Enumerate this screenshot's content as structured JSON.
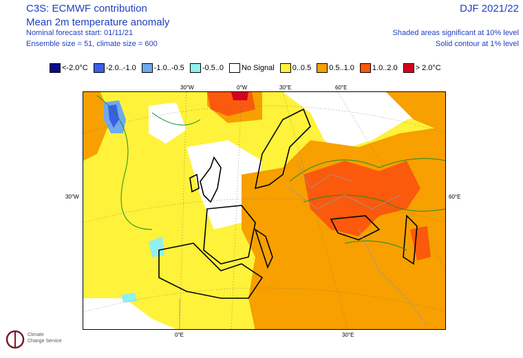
{
  "header": {
    "line1": "C3S: ECMWF contribution",
    "line2": "Mean 2m temperature anomaly",
    "line3": "Nominal forecast start: 01/11/21",
    "line4": "Ensemble size = 51, climate size = 600",
    "period": "DJF 2021/22",
    "sig1": "Shaded areas significant at 10% level",
    "sig2": "Solid contour at 1% level"
  },
  "legend": [
    {
      "label": "<-2.0°C",
      "color": "#0a0a8c"
    },
    {
      "label": "-2.0..-1.0",
      "color": "#3b5ee8"
    },
    {
      "label": "-1.0..-0.5",
      "color": "#6fa9ee"
    },
    {
      "label": "-0.5..0",
      "color": "#8ff0f0"
    },
    {
      "label": "No Signal",
      "color": "#ffffff"
    },
    {
      "label": "0..0.5",
      "color": "#fff23a"
    },
    {
      "label": "0.5..1.0",
      "color": "#f7a000"
    },
    {
      "label": "1.0..2.0",
      "color": "#fb5a0c"
    },
    {
      "label": "> 2.0°C",
      "color": "#d40020"
    }
  ],
  "axis_labels": {
    "top": [
      "30°W",
      "0°W",
      "30°E",
      "60°E"
    ],
    "left": "30°W",
    "right": "60°E",
    "bottom": [
      "0°E",
      "30°E"
    ]
  },
  "logo": {
    "name": "climate-change-service-logo",
    "text1": "Climate",
    "text2": "Change Service"
  }
}
